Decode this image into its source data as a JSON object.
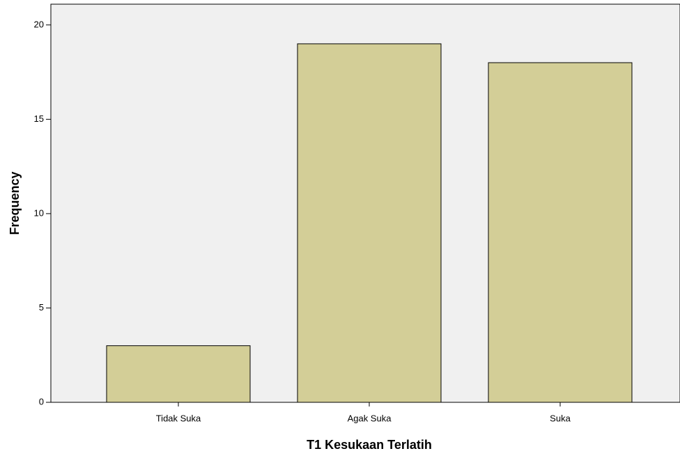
{
  "chart_data": {
    "type": "bar",
    "categories": [
      "Tidak Suka",
      "Agak Suka",
      "Suka"
    ],
    "values": [
      3,
      19,
      18
    ],
    "color": "#d3ce97",
    "ylim": [
      0,
      21.1
    ],
    "yticks": [
      0,
      5,
      10,
      15,
      20
    ],
    "xlabel": "T1 Kesukaan Terlatih",
    "ylabel": "Frequency",
    "grid": false
  }
}
